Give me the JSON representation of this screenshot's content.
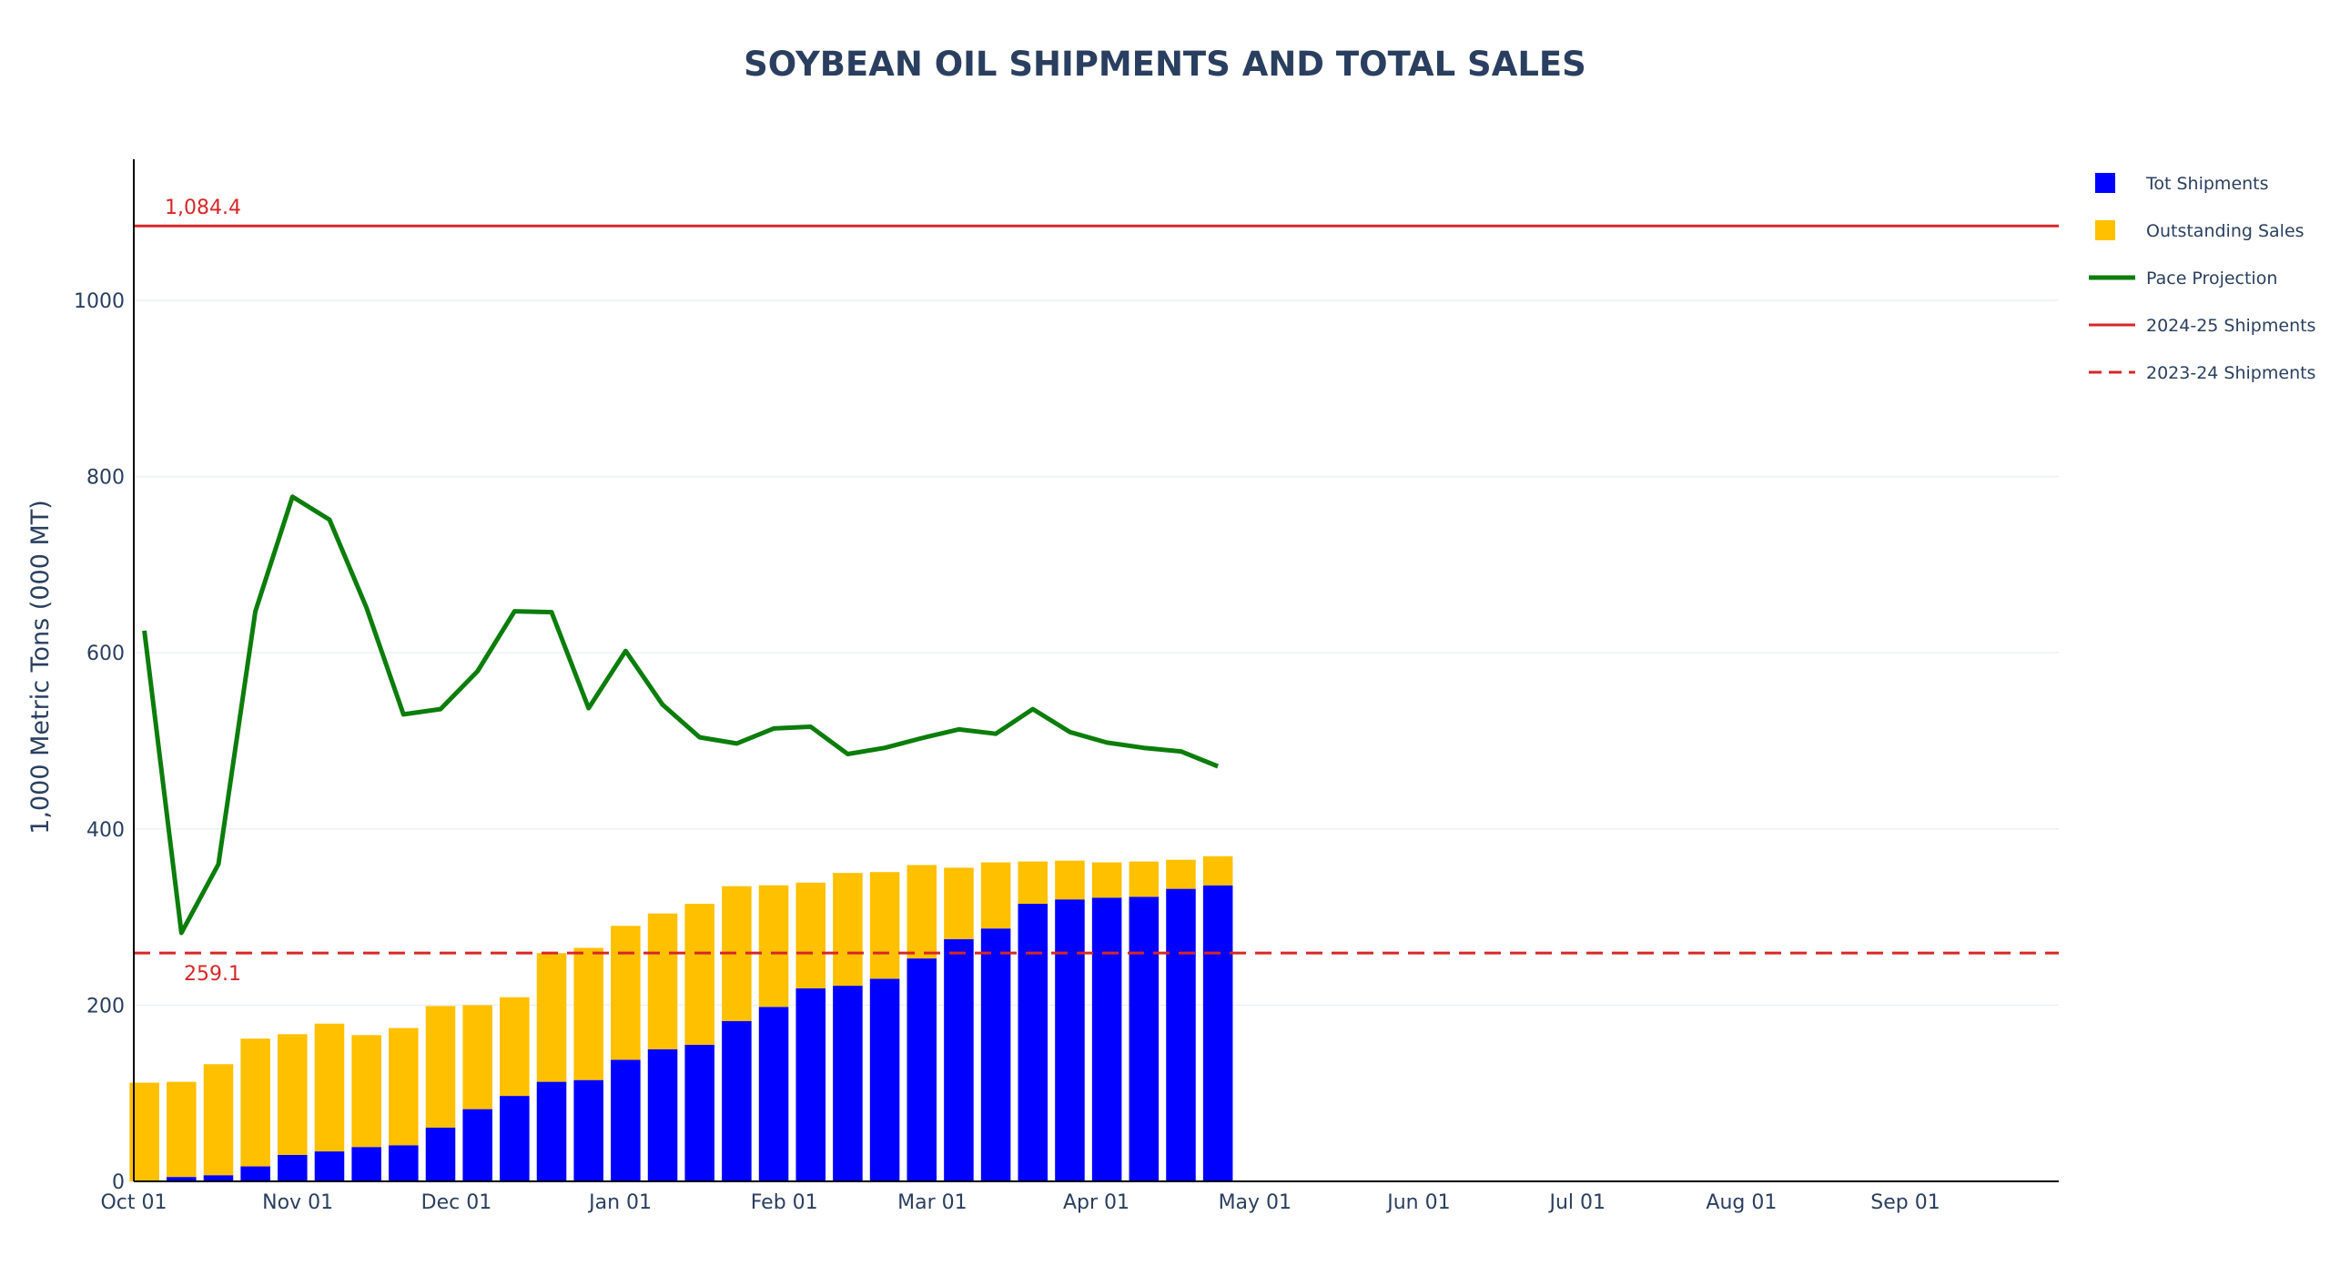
{
  "chart_data": {
    "type": "bar",
    "title": "SOYBEAN OIL SHIPMENTS AND TOTAL SALES",
    "ylabel": "1,000 Metric Tons (000 MT)",
    "xlabel": "",
    "ylim": [
      0,
      1160
    ],
    "xlim": [
      "2024-10-01",
      "2025-09-30"
    ],
    "grid": "horizontal",
    "legend_position": "top-right",
    "x_ticks": [
      {
        "date": "2024-10-01",
        "label": "Oct 01"
      },
      {
        "date": "2024-11-01",
        "label": "Nov 01"
      },
      {
        "date": "2024-12-01",
        "label": "Dec 01"
      },
      {
        "date": "2025-01-01",
        "label": "Jan 01"
      },
      {
        "date": "2025-02-01",
        "label": "Feb 01"
      },
      {
        "date": "2025-03-01",
        "label": "Mar 01"
      },
      {
        "date": "2025-04-01",
        "label": "Apr 01"
      },
      {
        "date": "2025-05-01",
        "label": "May 01"
      },
      {
        "date": "2025-06-01",
        "label": "Jun 01"
      },
      {
        "date": "2025-07-01",
        "label": "Jul 01"
      },
      {
        "date": "2025-08-01",
        "label": "Aug 01"
      },
      {
        "date": "2025-09-01",
        "label": "Sep 01"
      }
    ],
    "y_ticks": [
      0,
      200,
      400,
      600,
      800,
      1000
    ],
    "dates": [
      "2024-10-03",
      "2024-10-10",
      "2024-10-17",
      "2024-10-24",
      "2024-10-31",
      "2024-11-07",
      "2024-11-14",
      "2024-11-21",
      "2024-11-28",
      "2024-12-05",
      "2024-12-12",
      "2024-12-19",
      "2024-12-26",
      "2025-01-02",
      "2025-01-09",
      "2025-01-16",
      "2025-01-23",
      "2025-01-30",
      "2025-02-06",
      "2025-02-13",
      "2025-02-20",
      "2025-02-27",
      "2025-03-06",
      "2025-03-13",
      "2025-03-20",
      "2025-03-27",
      "2025-04-03",
      "2025-04-10",
      "2025-04-17",
      "2025-04-24"
    ],
    "series": [
      {
        "name": "Tot Shipments",
        "kind": "bar",
        "color": "#0000ff",
        "values": [
          0,
          5,
          7,
          17,
          30,
          34,
          39,
          41,
          61,
          82,
          97,
          113,
          115,
          138,
          150,
          155,
          182,
          198,
          219,
          222,
          230,
          253,
          275,
          287,
          315,
          320,
          322,
          323,
          332,
          336
        ]
      },
      {
        "name": "Outstanding Sales",
        "kind": "bar",
        "color": "#ffc000",
        "values": [
          112,
          108,
          126,
          145,
          137,
          145,
          127,
          133,
          138,
          118,
          112,
          146,
          150,
          152,
          154,
          160,
          153,
          138,
          120,
          128,
          121,
          106,
          81,
          75,
          48,
          44,
          40,
          40,
          33,
          33
        ]
      },
      {
        "name": "Pace Projection",
        "kind": "line",
        "color": "#0b7d0b",
        "values": [
          625,
          282,
          360,
          647,
          777,
          751,
          651,
          530,
          536,
          579,
          647,
          646,
          537,
          602,
          541,
          504,
          497,
          514,
          516,
          485,
          492,
          503,
          513,
          508,
          536,
          510,
          498,
          492,
          488,
          471
        ]
      },
      {
        "name": "2024-25 Shipments",
        "kind": "hline",
        "color": "#d62728",
        "dash": "solid",
        "value": 1084.4,
        "label": "1,084.4"
      },
      {
        "name": "2023-24 Shipments",
        "kind": "hline",
        "color": "#d62728",
        "dash": "dash",
        "value": 259.1,
        "label": "259.1"
      }
    ]
  }
}
